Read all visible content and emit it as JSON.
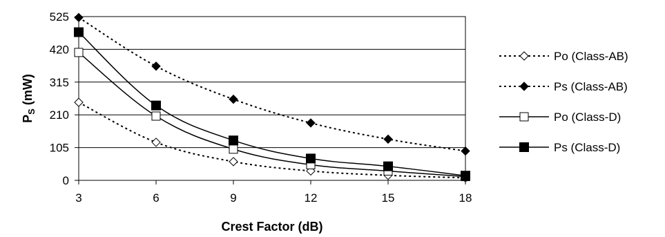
{
  "chart_data": {
    "type": "line",
    "title": "",
    "xlabel": "Crest Factor (dB)",
    "ylabel_main": "P",
    "ylabel_sub": "S",
    "ylabel_unit": " (mW)",
    "x": [
      3,
      6,
      9,
      12,
      15,
      18
    ],
    "xlim": [
      3,
      18
    ],
    "ylim": [
      0,
      525
    ],
    "yticks": [
      0,
      105,
      210,
      315,
      420,
      525
    ],
    "grid": "horizontal",
    "legend_position": "right",
    "series": [
      {
        "name": "Po (Class-AB)",
        "values": [
          250,
          122,
          60,
          30,
          16,
          8
        ],
        "line": "dotted",
        "marker": "diamond-open"
      },
      {
        "name": "Ps (Class-AB)",
        "values": [
          522,
          366,
          260,
          184,
          132,
          94
        ],
        "line": "dotted",
        "marker": "diamond-filled"
      },
      {
        "name": "Po (Class-D)",
        "values": [
          410,
          206,
          100,
          50,
          30,
          12
        ],
        "line": "solid",
        "marker": "square-open"
      },
      {
        "name": "Ps (Class-D)",
        "values": [
          475,
          240,
          128,
          70,
          45,
          15
        ],
        "line": "solid",
        "marker": "square-filled"
      }
    ]
  }
}
